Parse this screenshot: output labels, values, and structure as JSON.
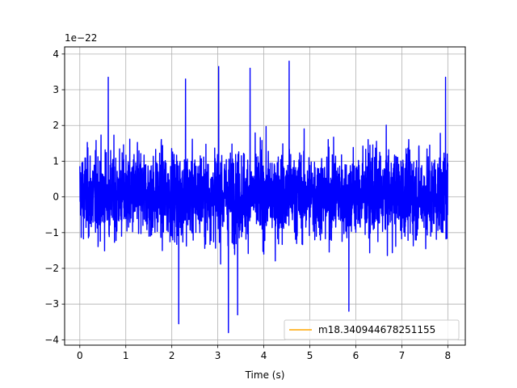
{
  "chart_data": {
    "type": "line",
    "xlabel": "Time (s)",
    "ylabel": "",
    "offset_text": "1e−22",
    "xlim": [
      -0.33,
      8.38
    ],
    "ylim": [
      -4.15,
      4.2
    ],
    "xticks": [
      0,
      1,
      2,
      3,
      4,
      5,
      6,
      7,
      8
    ],
    "yticks": [
      -4,
      -3,
      -2,
      -1,
      0,
      1,
      2,
      3,
      4
    ],
    "ytick_labels": [
      "−4",
      "−3",
      "−2",
      "−1",
      "0",
      "1",
      "2",
      "3",
      "4"
    ],
    "grid": true,
    "legend_position": "lower-right",
    "series": [
      {
        "name": "",
        "color": "#0000ff",
        "kind": "dense noise strain",
        "x_range": [
          0,
          8
        ],
        "typical_envelope": [
          -2.0,
          2.1
        ],
        "peaks": [
          {
            "x": 0.62,
            "y": 3.35
          },
          {
            "x": 2.15,
            "y": -3.55
          },
          {
            "x": 2.3,
            "y": 3.3
          },
          {
            "x": 3.02,
            "y": 3.65
          },
          {
            "x": 3.23,
            "y": -3.8
          },
          {
            "x": 3.43,
            "y": -3.3
          },
          {
            "x": 3.7,
            "y": 3.6
          },
          {
            "x": 4.55,
            "y": 3.8
          },
          {
            "x": 5.85,
            "y": -3.2
          },
          {
            "x": 7.95,
            "y": 3.35
          }
        ]
      },
      {
        "name": "m18.340944678251155",
        "color": "#ffa500",
        "kind": "legend-only"
      }
    ]
  }
}
